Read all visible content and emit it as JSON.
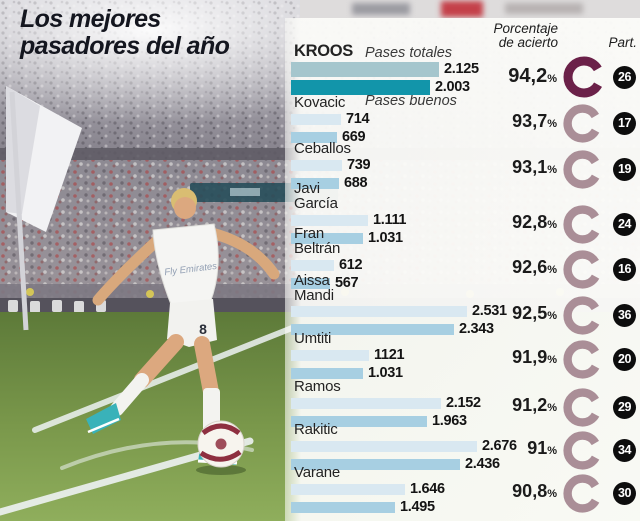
{
  "title": {
    "line1": "Los mejores",
    "line2": "pasadores del año"
  },
  "columns": {
    "accuracy_line1": "Porcentaje",
    "accuracy_line2": "de acierto",
    "part": "Part."
  },
  "legend": {
    "totales": "Pases totales",
    "buenos": "Pases buenos"
  },
  "percent_sign": "%",
  "photo": {
    "jersey_sponsor": "Fly Emirates",
    "jersey_number": "8"
  },
  "players": [
    {
      "name_lines": [
        "KROOS"
      ],
      "totales": "2.125",
      "buenos": "2.003",
      "pct": "94,2",
      "part": "26",
      "highlight": true
    },
    {
      "name_lines": [
        "Kovacic"
      ],
      "totales": "714",
      "buenos": "669",
      "pct": "93,7",
      "part": "17",
      "highlight": false
    },
    {
      "name_lines": [
        "Ceballos"
      ],
      "totales": "739",
      "buenos": "688",
      "pct": "93,1",
      "part": "19",
      "highlight": false
    },
    {
      "name_lines": [
        "Javi",
        "García"
      ],
      "totales": "1.111",
      "buenos": "1.031",
      "pct": "92,8",
      "part": "24",
      "highlight": false
    },
    {
      "name_lines": [
        "Fran",
        "Beltrán"
      ],
      "totales": "612",
      "buenos": "567",
      "pct": "92,6",
      "part": "16",
      "highlight": false
    },
    {
      "name_lines": [
        "Aissa",
        "Mandi"
      ],
      "totales": "2.531",
      "buenos": "2.343",
      "pct": "92,5",
      "part": "36",
      "highlight": false
    },
    {
      "name_lines": [
        "Umtiti"
      ],
      "totales": "1121",
      "buenos": "1.031",
      "pct": "91,9",
      "part": "20",
      "highlight": false
    },
    {
      "name_lines": [
        "Ramos"
      ],
      "totales": "2.152",
      "buenos": "1.963",
      "pct": "91,2",
      "part": "29",
      "highlight": false
    },
    {
      "name_lines": [
        "Rakitic"
      ],
      "totales": "2.676",
      "buenos": "2.436",
      "pct": "91",
      "part": "34",
      "highlight": false
    },
    {
      "name_lines": [
        "Varane"
      ],
      "totales": "1.646",
      "buenos": "1.495",
      "pct": "90,8",
      "part": "30",
      "highlight": false
    }
  ],
  "colors": {
    "kroos_total_bar": "#a5c6cd",
    "kroos_good_bar": "#1295aa",
    "total_bar": "#d9e8f1",
    "good_bar": "#a7cfe2",
    "donut_dark": "#6b2149",
    "donut_light": "#aa8e97",
    "part_badge_bg": "#0d0d0d"
  },
  "chart_data": {
    "type": "bar",
    "orientation": "horizontal",
    "title": "Los mejores pasadores del año",
    "categories": [
      "Kroos",
      "Kovacic",
      "Ceballos",
      "Javi García",
      "Fran Beltrán",
      "Aissa Mandi",
      "Umtiti",
      "Ramos",
      "Rakitic",
      "Varane"
    ],
    "series": [
      {
        "name": "Pases totales",
        "values": [
          2125,
          714,
          739,
          1111,
          612,
          2531,
          1121,
          2152,
          2676,
          1646
        ]
      },
      {
        "name": "Pases buenos",
        "values": [
          2003,
          669,
          688,
          1031,
          567,
          2343,
          1031,
          1963,
          2436,
          1495
        ]
      }
    ],
    "porcentaje_de_acierto": [
      94.2,
      93.7,
      93.1,
      92.8,
      92.6,
      92.5,
      91.9,
      91.2,
      91,
      90.8
    ],
    "partidos": [
      26,
      17,
      19,
      24,
      16,
      36,
      20,
      29,
      34,
      30
    ],
    "xlim": [
      0,
      2700
    ],
    "grid": false,
    "legend_position": "top-inline"
  }
}
